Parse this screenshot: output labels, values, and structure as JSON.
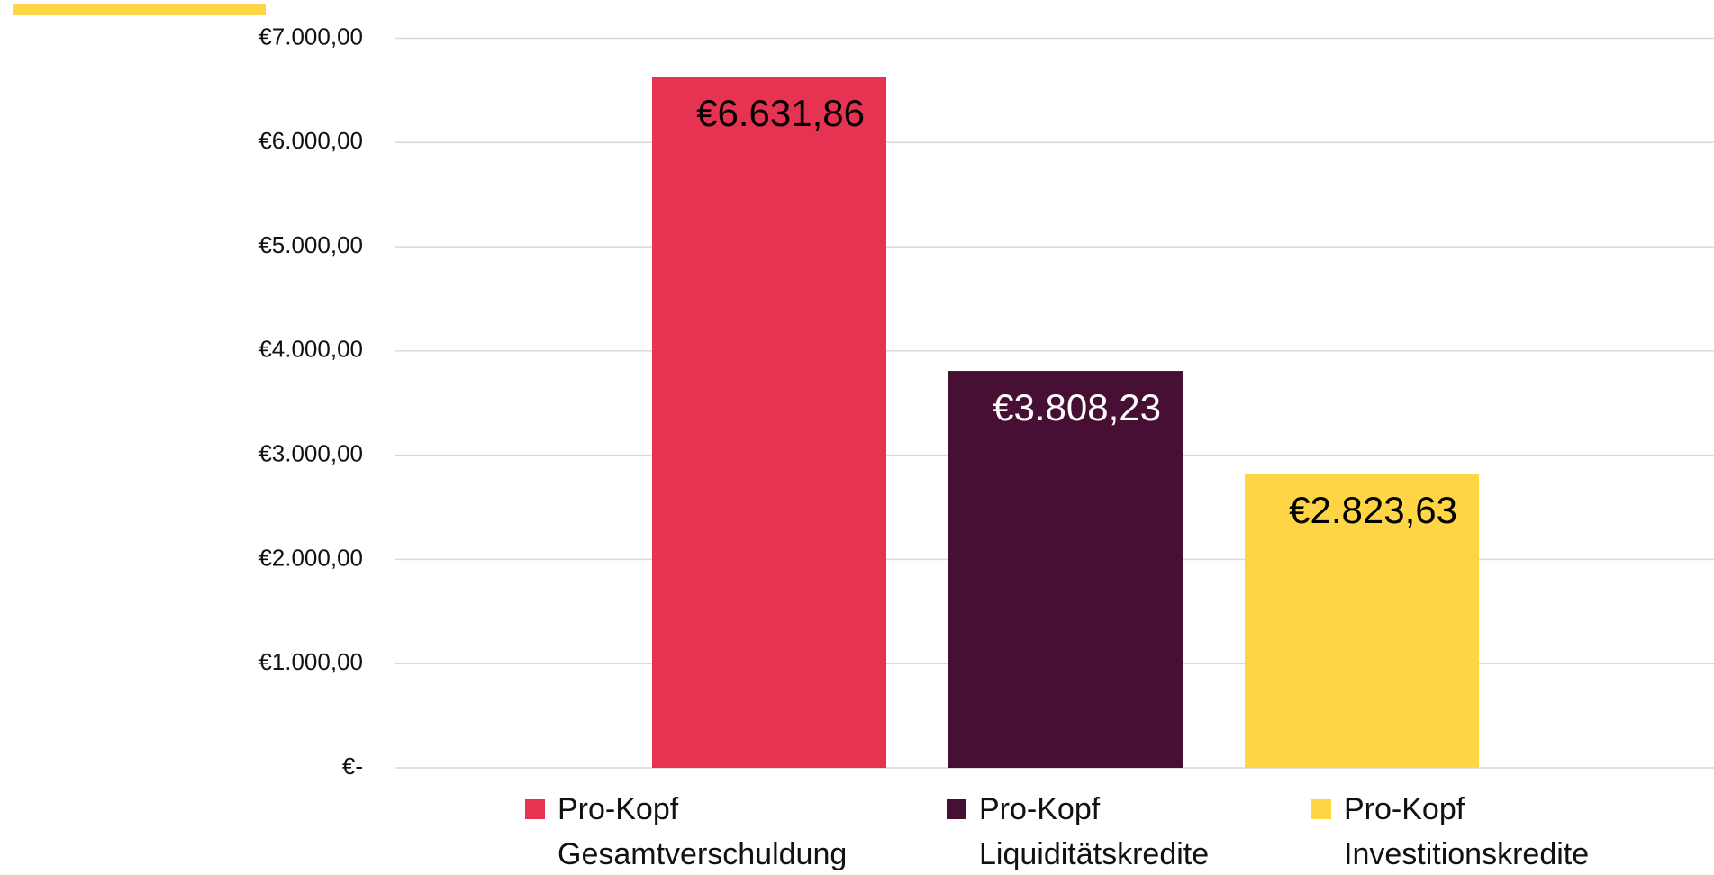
{
  "chart_data": {
    "type": "bar",
    "series": [
      {
        "name": "Pro-Kopf Gesamtverschuldung",
        "color": "#e63351",
        "label_color": "#000000",
        "values": [
          6631.86
        ],
        "value_labels": [
          "€6.631,86"
        ]
      },
      {
        "name": "Pro-Kopf Liquiditätskredite",
        "color": "#470f33",
        "label_color": "#ffffff",
        "values": [
          3808.23
        ],
        "value_labels": [
          "€3.808,23"
        ]
      },
      {
        "name": "Pro-Kopf Investitionskredite",
        "color": "#fdd545",
        "label_color": "#000000",
        "values": [
          2823.63
        ],
        "value_labels": [
          "€2.823,63"
        ]
      }
    ],
    "ylim": [
      0,
      7000
    ],
    "yticks": [
      {
        "value": 0,
        "label": "€-"
      },
      {
        "value": 1000,
        "label": "€1.000,00"
      },
      {
        "value": 2000,
        "label": "€2.000,00"
      },
      {
        "value": 3000,
        "label": "€3.000,00"
      },
      {
        "value": 4000,
        "label": "€4.000,00"
      },
      {
        "value": 5000,
        "label": "€5.000,00"
      },
      {
        "value": 6000,
        "label": "€6.000,00"
      },
      {
        "value": 7000,
        "label": "€7.000,00"
      }
    ],
    "grid": true,
    "legend": "bottom"
  }
}
